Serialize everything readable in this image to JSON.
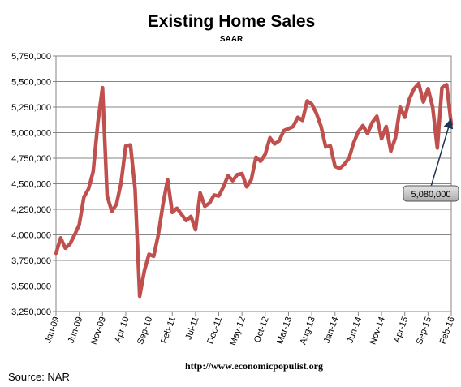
{
  "chart_data": {
    "type": "line",
    "title": "Existing Home Sales",
    "subtitle": "SAAR",
    "x_start": "Jan-09",
    "x_end": "Feb-16",
    "x_ticks": [
      "Jan-09",
      "Jun-09",
      "Nov-09",
      "Apr-10",
      "Sep-10",
      "Feb-11",
      "Jul-11",
      "Dec-11",
      "May-12",
      "Oct-12",
      "Mar-13",
      "Aug-13",
      "Jan-14",
      "Jun-14",
      "Nov-14",
      "Apr-15",
      "Sep-15",
      "Feb-16"
    ],
    "y_ticks": [
      "3,250,000",
      "3,500,000",
      "3,750,000",
      "4,000,000",
      "4,250,000",
      "4,500,000",
      "4,750,000",
      "5,000,000",
      "5,250,000",
      "5,500,000",
      "5,750,000"
    ],
    "ylim": [
      3250000,
      5750000
    ],
    "grid": true,
    "series": [
      {
        "color": "#c0504d",
        "values": [
          3820000,
          3970000,
          3870000,
          3910000,
          4000000,
          4100000,
          4370000,
          4450000,
          4620000,
          5100000,
          5440000,
          4380000,
          4230000,
          4300000,
          4510000,
          4870000,
          4880000,
          4450000,
          3400000,
          3650000,
          3810000,
          3790000,
          4000000,
          4300000,
          4540000,
          4220000,
          4260000,
          4200000,
          4140000,
          4180000,
          4050000,
          4410000,
          4280000,
          4310000,
          4390000,
          4380000,
          4470000,
          4580000,
          4530000,
          4590000,
          4600000,
          4470000,
          4540000,
          4760000,
          4720000,
          4790000,
          4950000,
          4890000,
          4920000,
          5020000,
          5040000,
          5060000,
          5150000,
          5120000,
          5310000,
          5280000,
          5190000,
          5060000,
          4860000,
          4870000,
          4670000,
          4650000,
          4690000,
          4750000,
          4900000,
          5010000,
          5070000,
          4990000,
          5100000,
          5160000,
          4940000,
          5060000,
          4820000,
          4950000,
          5250000,
          5150000,
          5330000,
          5430000,
          5480000,
          5300000,
          5430000,
          5250000,
          4850000,
          5440000,
          5470000,
          5080000
        ]
      }
    ],
    "annotation": {
      "text": "5,080,000"
    }
  },
  "footer": {
    "url": "http://www.economicpopulist.org",
    "source": "Source:  NAR"
  }
}
